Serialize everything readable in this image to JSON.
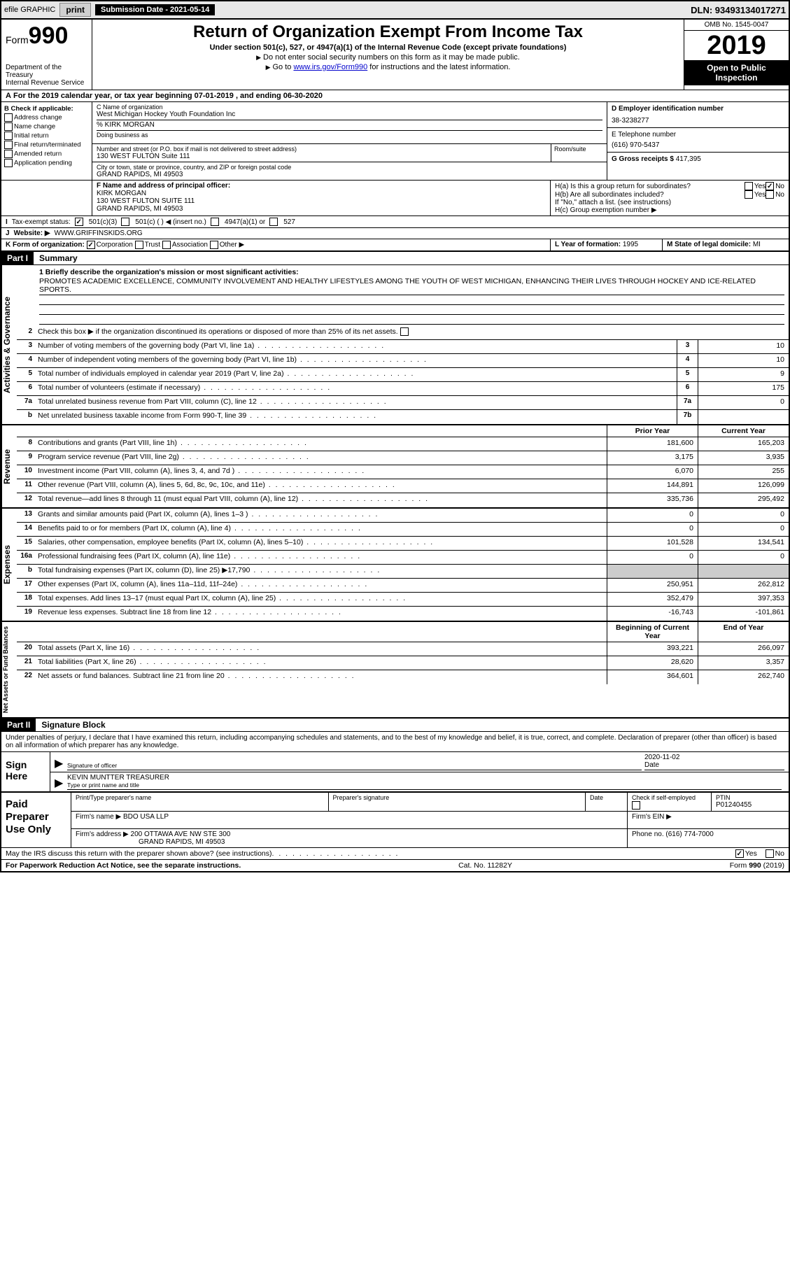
{
  "topbar": {
    "efile_label": "efile GRAPHIC",
    "print_label": "print",
    "submission_label": "Submission Date - 2021-05-14",
    "dln_label": "DLN: 93493134017271"
  },
  "header": {
    "form_label": "Form",
    "form_number": "990",
    "dept1": "Department of the Treasury",
    "dept2": "Internal Revenue Service",
    "title": "Return of Organization Exempt From Income Tax",
    "subtitle": "Under section 501(c), 527, or 4947(a)(1) of the Internal Revenue Code (except private foundations)",
    "note1": "Do not enter social security numbers on this form as it may be made public.",
    "note2_pre": "Go to ",
    "note2_link": "www.irs.gov/Form990",
    "note2_post": " for instructions and the latest information.",
    "omb": "OMB No. 1545-0047",
    "year": "2019",
    "open": "Open to Public Inspection"
  },
  "row_a": "For the 2019 calendar year, or tax year beginning 07-01-2019    , and ending 06-30-2020",
  "col_b": {
    "label": "B Check if applicable:",
    "opts": [
      "Address change",
      "Name change",
      "Initial return",
      "Final return/terminated",
      "Amended return",
      "Application pending"
    ]
  },
  "col_c": {
    "name_lbl": "C Name of organization",
    "name": "West Michigan Hockey Youth Foundation Inc",
    "care_lbl": "% KIRK MORGAN",
    "dba_lbl": "Doing business as",
    "addr_lbl": "Number and street (or P.O. box if mail is not delivered to street address)",
    "addr": "130 WEST FULTON Suite 111",
    "room_lbl": "Room/suite",
    "city_lbl": "City or town, state or province, country, and ZIP or foreign postal code",
    "city": "GRAND RAPIDS, MI  49503"
  },
  "col_d": {
    "ein_lbl": "D Employer identification number",
    "ein": "38-3238277",
    "tel_lbl": "E Telephone number",
    "tel": "(616) 970-5437",
    "gross_lbl": "G Gross receipts $",
    "gross": "417,395"
  },
  "col_f": {
    "lbl": "F  Name and address of principal officer:",
    "name": "KIRK MORGAN",
    "addr1": "130 WEST FULTON SUITE 111",
    "addr2": "GRAND RAPIDS, MI  49503"
  },
  "col_h": {
    "ha": "H(a)  Is this a group return for subordinates?",
    "hb": "H(b)  Are all subordinates included?",
    "hb_note": "If \"No,\" attach a list. (see instructions)",
    "hc": "H(c)  Group exemption number ▶",
    "yes": "Yes",
    "no": "No"
  },
  "row_i": {
    "lbl": "Tax-exempt status:",
    "opts": [
      "501(c)(3)",
      "501(c) (   ) ◀ (insert no.)",
      "4947(a)(1) or",
      "527"
    ]
  },
  "row_j": {
    "lbl": "J",
    "website_lbl": "Website: ▶",
    "website": "WWW.GRIFFINSKIDS.ORG"
  },
  "row_k": {
    "lbl": "K Form of organization:",
    "opts": [
      "Corporation",
      "Trust",
      "Association",
      "Other ▶"
    ]
  },
  "row_l": {
    "lbl": "L Year of formation:",
    "val": "1995"
  },
  "row_m": {
    "lbl": "M State of legal domicile:",
    "val": "MI"
  },
  "part1": {
    "hdr": "Part I",
    "title": "Summary"
  },
  "mission": {
    "lbl": "1  Briefly describe the organization's mission or most significant activities:",
    "text": "PROMOTES ACADEMIC EXCELLENCE, COMMUNITY INVOLVEMENT AND HEALTHY LIFESTYLES AMONG THE YOUTH OF WEST MICHIGAN, ENHANCING THEIR LIVES THROUGH HOCKEY AND ICE-RELATED SPORTS."
  },
  "gov": {
    "line2": "Check this box ▶       if the organization discontinued its operations or disposed of more than 25% of its net assets.",
    "rows": [
      {
        "n": "3",
        "d": "Number of voting members of the governing body (Part VI, line 1a)",
        "b": "3",
        "v": "10"
      },
      {
        "n": "4",
        "d": "Number of independent voting members of the governing body (Part VI, line 1b)",
        "b": "4",
        "v": "10"
      },
      {
        "n": "5",
        "d": "Total number of individuals employed in calendar year 2019 (Part V, line 2a)",
        "b": "5",
        "v": "9"
      },
      {
        "n": "6",
        "d": "Total number of volunteers (estimate if necessary)",
        "b": "6",
        "v": "175"
      },
      {
        "n": "7a",
        "d": "Total unrelated business revenue from Part VIII, column (C), line 12",
        "b": "7a",
        "v": "0"
      },
      {
        "n": "b",
        "d": "Net unrelated business taxable income from Form 990-T, line 39",
        "b": "7b",
        "v": ""
      }
    ]
  },
  "hdr_cols": {
    "prior": "Prior Year",
    "current": "Current Year"
  },
  "revenue": [
    {
      "n": "8",
      "d": "Contributions and grants (Part VIII, line 1h)",
      "p": "181,600",
      "c": "165,203"
    },
    {
      "n": "9",
      "d": "Program service revenue (Part VIII, line 2g)",
      "p": "3,175",
      "c": "3,935"
    },
    {
      "n": "10",
      "d": "Investment income (Part VIII, column (A), lines 3, 4, and 7d )",
      "p": "6,070",
      "c": "255"
    },
    {
      "n": "11",
      "d": "Other revenue (Part VIII, column (A), lines 5, 6d, 8c, 9c, 10c, and 11e)",
      "p": "144,891",
      "c": "126,099"
    },
    {
      "n": "12",
      "d": "Total revenue—add lines 8 through 11 (must equal Part VIII, column (A), line 12)",
      "p": "335,736",
      "c": "295,492"
    }
  ],
  "expenses": [
    {
      "n": "13",
      "d": "Grants and similar amounts paid (Part IX, column (A), lines 1–3 )",
      "p": "0",
      "c": "0"
    },
    {
      "n": "14",
      "d": "Benefits paid to or for members (Part IX, column (A), line 4)",
      "p": "0",
      "c": "0"
    },
    {
      "n": "15",
      "d": "Salaries, other compensation, employee benefits (Part IX, column (A), lines 5–10)",
      "p": "101,528",
      "c": "134,541"
    },
    {
      "n": "16a",
      "d": "Professional fundraising fees (Part IX, column (A), line 11e)",
      "p": "0",
      "c": "0"
    },
    {
      "n": "b",
      "d": "Total fundraising expenses (Part IX, column (D), line 25) ▶17,790",
      "p": "",
      "c": "",
      "shade": true
    },
    {
      "n": "17",
      "d": "Other expenses (Part IX, column (A), lines 11a–11d, 11f–24e)",
      "p": "250,951",
      "c": "262,812"
    },
    {
      "n": "18",
      "d": "Total expenses. Add lines 13–17 (must equal Part IX, column (A), line 25)",
      "p": "352,479",
      "c": "397,353"
    },
    {
      "n": "19",
      "d": "Revenue less expenses. Subtract line 18 from line 12",
      "p": "-16,743",
      "c": "-101,861"
    }
  ],
  "hdr_cols2": {
    "begin": "Beginning of Current Year",
    "end": "End of Year"
  },
  "netassets": [
    {
      "n": "20",
      "d": "Total assets (Part X, line 16)",
      "p": "393,221",
      "c": "266,097"
    },
    {
      "n": "21",
      "d": "Total liabilities (Part X, line 26)",
      "p": "28,620",
      "c": "3,357"
    },
    {
      "n": "22",
      "d": "Net assets or fund balances. Subtract line 21 from line 20",
      "p": "364,601",
      "c": "262,740"
    }
  ],
  "part2": {
    "hdr": "Part II",
    "title": "Signature Block"
  },
  "sig": {
    "intro": "Under penalties of perjury, I declare that I have examined this return, including accompanying schedules and statements, and to the best of my knowledge and belief, it is true, correct, and complete. Declaration of preparer (other than officer) is based on all information of which preparer has any knowledge.",
    "sign_here": "Sign Here",
    "sig_officer_cap": "Signature of officer",
    "date_cap": "Date",
    "date_val": "2020-11-02",
    "name_val": "KEVIN MUNTTER  TREASURER",
    "name_cap": "Type or print name and title"
  },
  "prep": {
    "label": "Paid Preparer Use Only",
    "r1": {
      "c1": "Print/Type preparer's name",
      "c2": "Preparer's signature",
      "c3": "Date",
      "c4_lbl": "Check        if self-employed",
      "c5_lbl": "PTIN",
      "c5_val": "P01240455"
    },
    "r2": {
      "firm_lbl": "Firm's name    ▶",
      "firm": "BDO USA LLP",
      "ein_lbl": "Firm's EIN ▶"
    },
    "r3": {
      "addr_lbl": "Firm's address ▶",
      "addr1": "200 OTTAWA AVE NW STE 300",
      "addr2": "GRAND RAPIDS, MI  49503",
      "phone_lbl": "Phone no.",
      "phone": "(616) 774-7000"
    }
  },
  "discuss": {
    "q": "May the IRS discuss this return with the preparer shown above? (see instructions)",
    "yes": "Yes",
    "no": "No"
  },
  "footer": {
    "left": "For Paperwork Reduction Act Notice, see the separate instructions.",
    "mid": "Cat. No. 11282Y",
    "right": "Form 990 (2019)"
  },
  "vtabs": {
    "gov": "Activities & Governance",
    "rev": "Revenue",
    "exp": "Expenses",
    "net": "Net Assets or Fund Balances"
  }
}
